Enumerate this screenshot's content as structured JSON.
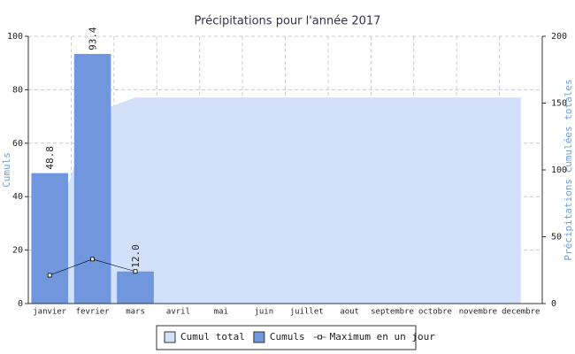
{
  "chart_data": {
    "type": "bar",
    "title": "Précipitations pour l'année 2017",
    "categories": [
      "janvier",
      "fevrier",
      "mars",
      "avril",
      "mai",
      "juin",
      "juillet",
      "aout",
      "septembre",
      "octobre",
      "novembre",
      "decembre"
    ],
    "series": [
      {
        "name": "Cumul total",
        "type": "area",
        "axis": "y2",
        "color": "#d2e0fa",
        "values": [
          48.8,
          142.2,
          154.2,
          154.2,
          154.2,
          154.2,
          154.2,
          154.2,
          154.2,
          154.2,
          154.2,
          154.2
        ]
      },
      {
        "name": "Cumuls",
        "type": "bar",
        "color": "#7097de",
        "values": [
          48.8,
          93.4,
          12.0,
          null,
          null,
          null,
          null,
          null,
          null,
          null,
          null,
          null
        ],
        "value_labels": [
          "48.8",
          "93.4",
          "12.0",
          null,
          null,
          null,
          null,
          null,
          null,
          null,
          null,
          null
        ]
      },
      {
        "name": "Maximum en un jour",
        "type": "line",
        "color": "#000000",
        "values": [
          10.6,
          16.6,
          12.0,
          null,
          null,
          null,
          null,
          null,
          null,
          null,
          null,
          null
        ]
      }
    ],
    "ylabel": "Cumuls",
    "y2label": "Précipitations cumulées totales",
    "ylim": [
      0,
      100
    ],
    "yticks": [
      0,
      20,
      40,
      60,
      80,
      100
    ],
    "y2lim": [
      0,
      200
    ],
    "y2ticks": [
      0,
      50,
      100,
      150,
      200
    ],
    "grid": true,
    "legend": "bottom"
  }
}
